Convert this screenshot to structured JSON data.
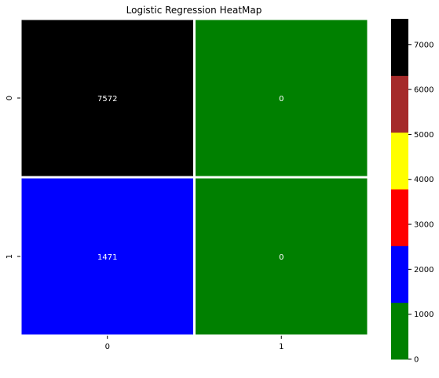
{
  "chart_data": {
    "type": "heatmap",
    "title": "Logistic Regression HeatMap",
    "xlabel": "",
    "ylabel": "",
    "x_categories": [
      "0",
      "1"
    ],
    "y_categories": [
      "0",
      "1"
    ],
    "values": [
      [
        7572,
        0
      ],
      [
        1471,
        0
      ]
    ],
    "cell_labels": [
      [
        "7572",
        "0"
      ],
      [
        "1471",
        "0"
      ]
    ],
    "colormap": {
      "type": "discrete",
      "colors": [
        "#008000",
        "#0000ff",
        "#ff0000",
        "#ffff00",
        "#a52a2a",
        "#000000"
      ],
      "range": [
        0,
        7572
      ],
      "ticks": [
        0,
        1000,
        2000,
        3000,
        4000,
        5000,
        6000,
        7000
      ]
    },
    "grid": false
  }
}
